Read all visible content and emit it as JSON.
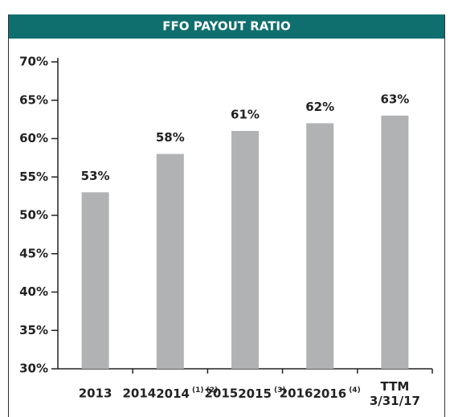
{
  "chart_data": {
    "type": "bar",
    "title": "FFO PAYOUT RATIO",
    "categories": [
      "2013",
      "2014",
      "2015",
      "2016",
      "TTM 3/31/17"
    ],
    "category_notes": [
      null,
      "(1) (2)",
      "(3)",
      "(4)",
      null
    ],
    "values": [
      53,
      58,
      61,
      62,
      63
    ],
    "value_labels": [
      "53%",
      "58%",
      "61%",
      "62%",
      "63%"
    ],
    "color": "#b1b2b4",
    "ylim": [
      30,
      70
    ],
    "yticks": [
      {
        "value": 30,
        "label": "30%"
      },
      {
        "value": 35,
        "label": "35%"
      },
      {
        "value": 40,
        "label": "40%"
      },
      {
        "value": 45,
        "label": "45%"
      },
      {
        "value": 50,
        "label": "50%"
      },
      {
        "value": 55,
        "label": "55%"
      },
      {
        "value": 60,
        "label": "60%"
      },
      {
        "value": 65,
        "label": "65%"
      },
      {
        "value": 70,
        "label": "70%"
      }
    ],
    "grid": false
  }
}
